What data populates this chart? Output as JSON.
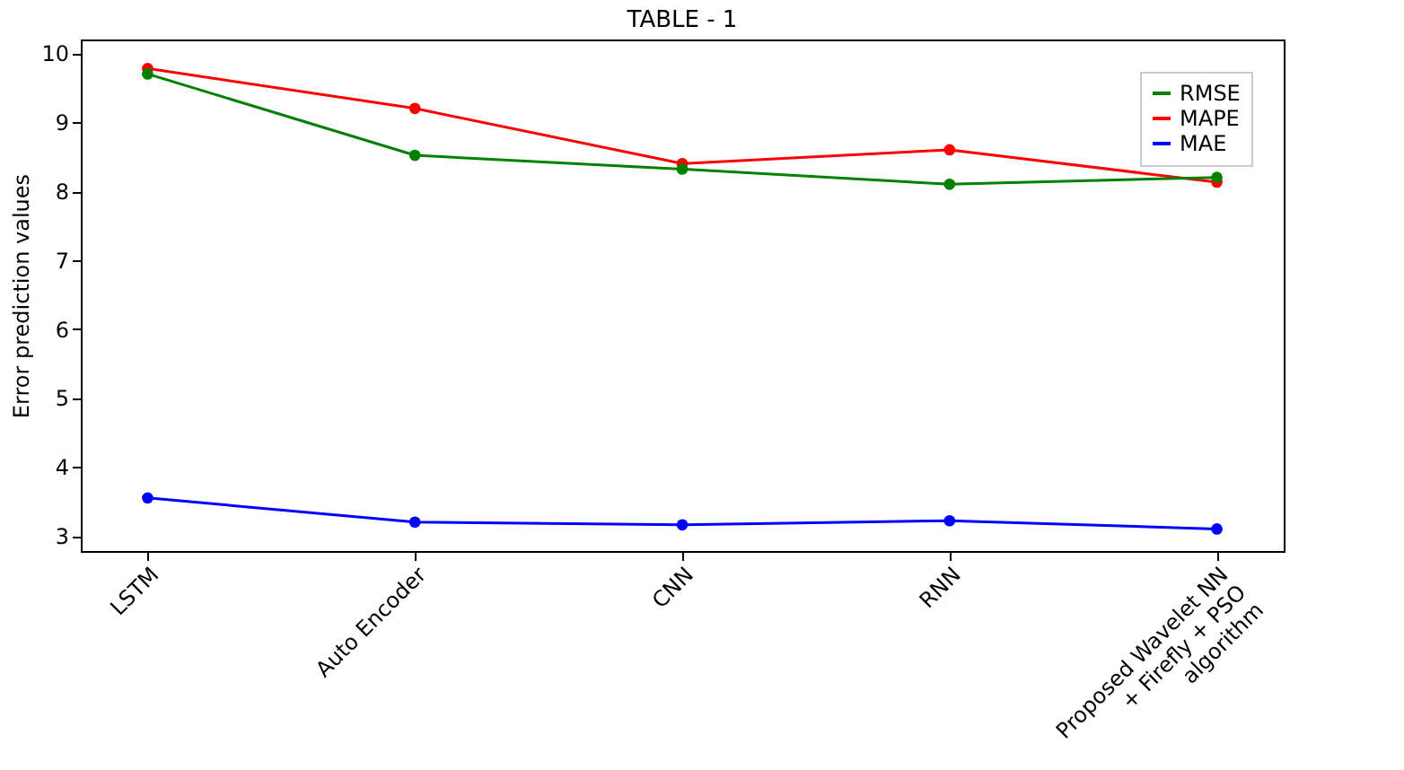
{
  "chart_data": {
    "type": "line",
    "title": "TABLE - 1",
    "ylabel": "Error prediction values",
    "categories": [
      "LSTM",
      "Auto Encoder",
      "CNN",
      "RNN",
      "Proposed Wavelet NN + Firefly + PSO algorithm"
    ],
    "series": [
      {
        "name": "RMSE",
        "color": "#008000",
        "values": [
          9.7,
          8.52,
          8.32,
          8.1,
          8.2
        ]
      },
      {
        "name": "MAPE",
        "color": "#ff0000",
        "values": [
          9.78,
          9.2,
          8.4,
          8.6,
          8.13
        ]
      },
      {
        "name": "MAE",
        "color": "#0000ff",
        "values": [
          3.55,
          3.2,
          3.16,
          3.22,
          3.1
        ]
      }
    ],
    "ylim": [
      2.78,
      10.2
    ],
    "yticks": [
      3,
      4,
      5,
      6,
      7,
      8,
      9,
      10
    ],
    "grid": false,
    "legend": "top right",
    "marker": "circle",
    "line_style": "solid"
  }
}
